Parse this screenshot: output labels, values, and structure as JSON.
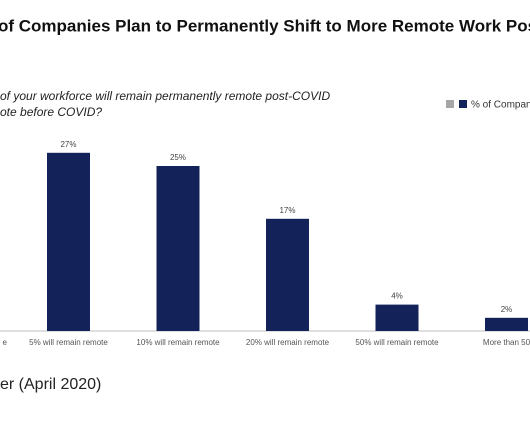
{
  "chart_data": {
    "type": "bar",
    "title": "of Companies Plan to Permanently Shift to More Remote Work Post",
    "subtitle": [
      "of your workforce will remain permanently remote post-COVID",
      "ote before COVID?"
    ],
    "categories": [
      "e",
      "5% will remain remote",
      "10% will remain remote",
      "20% will remain remote",
      "50% will remain remote",
      "More than 50"
    ],
    "series": [
      {
        "name": "% of Compan",
        "color": "#14225a",
        "values": [
          null,
          27,
          25,
          17,
          4,
          2
        ],
        "value_labels": [
          null,
          "27%",
          "25%",
          "17%",
          "4%",
          "2%"
        ]
      }
    ],
    "ylim": [
      0,
      30
    ],
    "source": "er (April 2020)"
  }
}
